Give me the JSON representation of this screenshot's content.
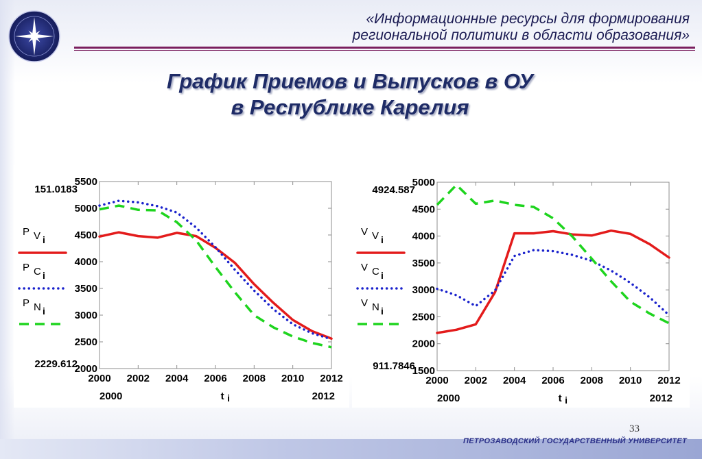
{
  "header": {
    "line1": "«Информационные ресурсы для формирования",
    "line2": "региональной политики в области образования»",
    "logo_icon": "university-seal-icon"
  },
  "title": {
    "line1": "График Приемов и Выпусков в ОУ",
    "line2": "в Республике Карелия"
  },
  "colors": {
    "red": "#e31b1b",
    "blue": "#1a22cc",
    "green": "#1ed41e",
    "title": "#1e2b66",
    "header_rule": "#7a1f5e"
  },
  "chart_data": [
    {
      "type": "line",
      "x": [
        2000,
        2001,
        2002,
        2003,
        2004,
        2005,
        2006,
        2007,
        2008,
        2009,
        2010,
        2011,
        2012
      ],
      "xlim": [
        2000,
        2012
      ],
      "ylim": [
        2000,
        5500
      ],
      "x_ticks": [
        "2000",
        "2002",
        "2004",
        "2006",
        "2008",
        "2010",
        "2012"
      ],
      "y_ticks": [
        "2000",
        "2500",
        "3000",
        "3500",
        "4000",
        "4500",
        "5000",
        "5500"
      ],
      "corner_labels": {
        "y_max": "151.0183",
        "y_min": "2229.612",
        "x_min": "2000",
        "x_max": "2012",
        "x_var": "t",
        "x_var_sub": "i"
      },
      "series": [
        {
          "name": "P",
          "sub": "V",
          "index": "i",
          "color": "#e31b1b",
          "dash": "solid",
          "values": [
            4470,
            4550,
            4480,
            4450,
            4540,
            4480,
            4260,
            3980,
            3580,
            3230,
            2910,
            2700,
            2560
          ]
        },
        {
          "name": "P",
          "sub": "C",
          "index": "i",
          "color": "#1a22cc",
          "dash": "dotted",
          "values": [
            5050,
            5140,
            5110,
            5040,
            4920,
            4640,
            4270,
            3850,
            3460,
            3110,
            2830,
            2660,
            2550
          ]
        },
        {
          "name": "P",
          "sub": "N",
          "index": "i",
          "color": "#1ed41e",
          "dash": "dashed",
          "values": [
            4980,
            5050,
            4970,
            4960,
            4740,
            4400,
            3900,
            3430,
            3000,
            2770,
            2600,
            2480,
            2400
          ]
        }
      ]
    },
    {
      "type": "line",
      "x": [
        2000,
        2001,
        2002,
        2003,
        2004,
        2005,
        2006,
        2007,
        2008,
        2009,
        2010,
        2011,
        2012
      ],
      "xlim": [
        2000,
        2012
      ],
      "ylim": [
        1500,
        5000
      ],
      "x_ticks": [
        "2000",
        "2002",
        "2004",
        "2006",
        "2008",
        "2010",
        "2012"
      ],
      "y_ticks": [
        "1500",
        "2000",
        "2500",
        "3000",
        "3500",
        "4000",
        "4500",
        "5000"
      ],
      "corner_labels": {
        "y_max": "4924.587",
        "y_min": "911.7846",
        "x_min": "2000",
        "x_max": "2012",
        "x_var": "t",
        "x_var_sub": "i"
      },
      "series": [
        {
          "name": "V",
          "sub": "V",
          "index": "i",
          "color": "#e31b1b",
          "dash": "solid",
          "values": [
            2200,
            2260,
            2360,
            2960,
            4050,
            4050,
            4090,
            4030,
            4010,
            4100,
            4040,
            3850,
            3600
          ]
        },
        {
          "name": "V",
          "sub": "C",
          "index": "i",
          "color": "#1a22cc",
          "dash": "dotted",
          "values": [
            3020,
            2900,
            2700,
            2990,
            3630,
            3740,
            3720,
            3650,
            3540,
            3360,
            3130,
            2860,
            2530
          ]
        },
        {
          "name": "V",
          "sub": "N",
          "index": "i",
          "color": "#1ed41e",
          "dash": "dashed",
          "values": [
            4580,
            4950,
            4600,
            4660,
            4580,
            4540,
            4330,
            3990,
            3580,
            3160,
            2780,
            2560,
            2380
          ]
        }
      ]
    }
  ],
  "footer": {
    "page_number": "33",
    "university": "ПЕТРОЗАВОДСКИЙ ГОСУДАРСТВЕННЫЙ УНИВЕРСИТЕТ"
  }
}
